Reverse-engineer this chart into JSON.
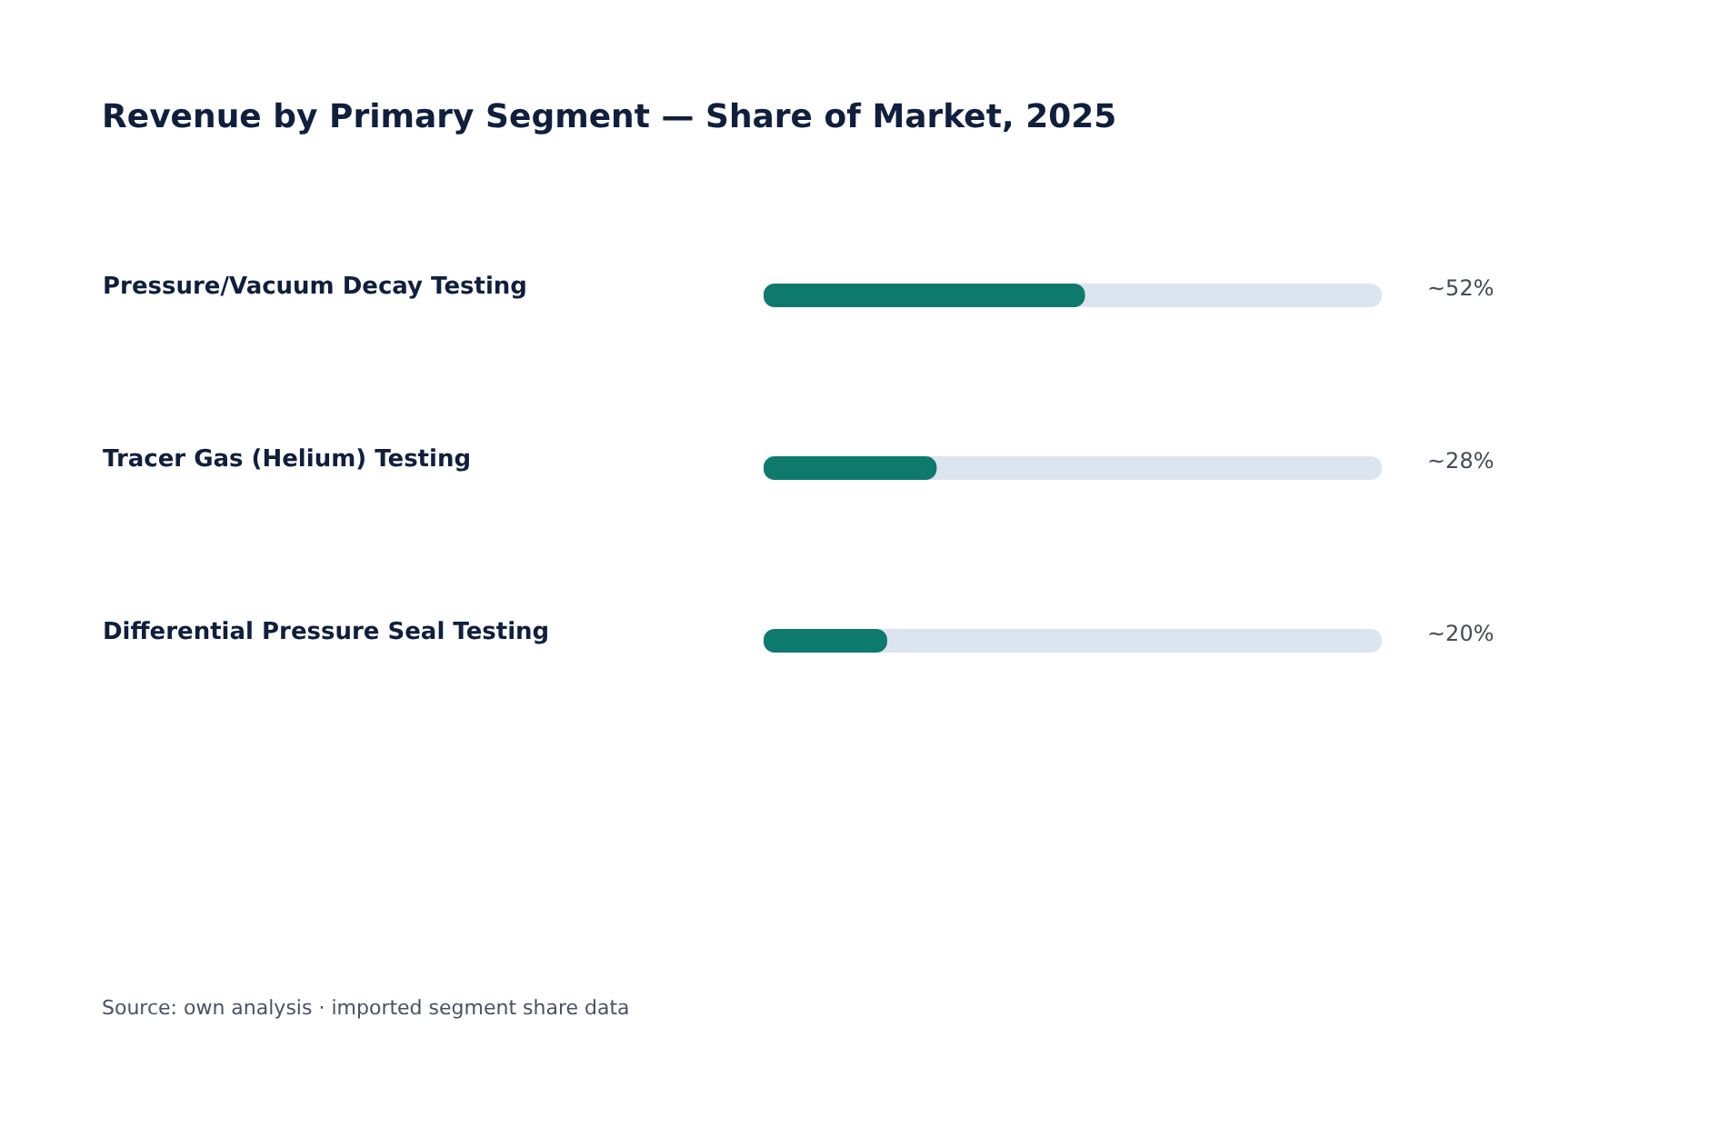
{
  "chart_data": {
    "type": "bar",
    "orientation": "horizontal",
    "title": "Revenue by Primary Segment — Share of Market, 2025",
    "categories": [
      "Pressure/Vacuum Decay Testing",
      "Tracer Gas (Helium) Testing",
      "Differential Pressure Seal Testing"
    ],
    "values": [
      52,
      28,
      20
    ],
    "value_labels": [
      "~52%",
      "~28%",
      "~20%"
    ],
    "color": "#0e7a6e",
    "xlim": [
      0,
      100
    ],
    "grid": false,
    "annotations": [
      "Source: own analysis · imported segment share data"
    ]
  }
}
